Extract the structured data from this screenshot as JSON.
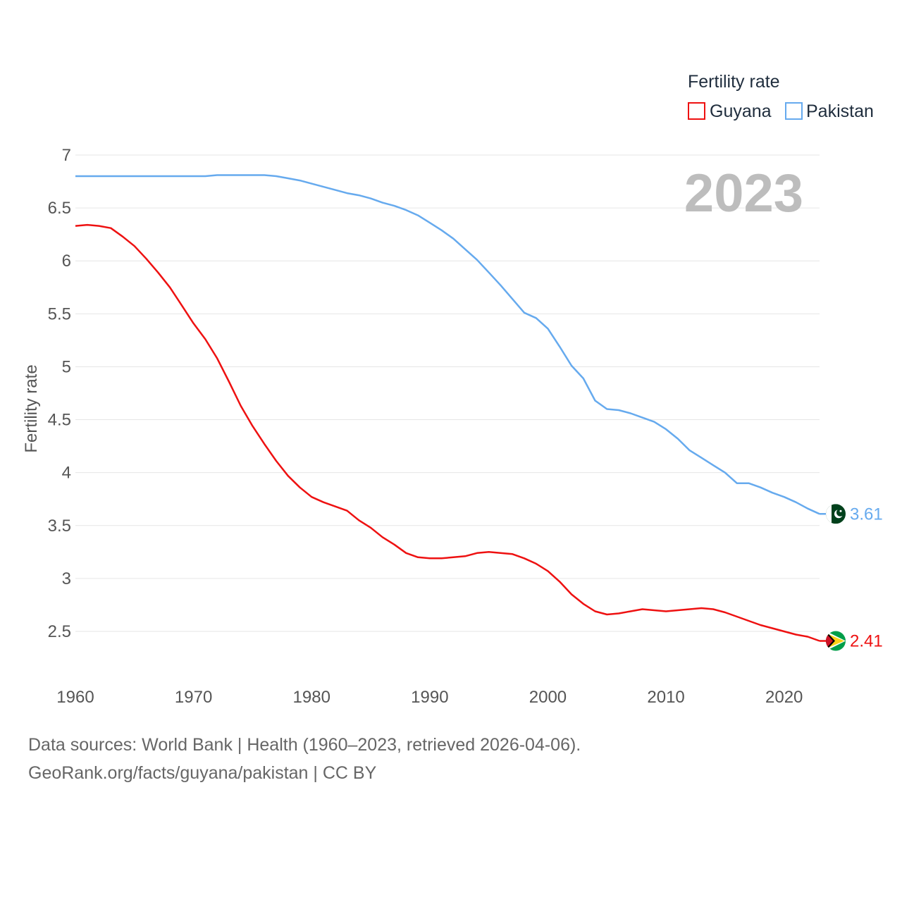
{
  "chart_data": {
    "type": "line",
    "title": "",
    "current_year": "2023",
    "ylabel": "Fertility rate",
    "xlabel": "",
    "xlim": [
      1960,
      2023
    ],
    "ylim": [
      2.1,
      7
    ],
    "y_ticks": [
      2.5,
      3,
      3.5,
      4,
      4.5,
      5,
      5.5,
      6,
      6.5,
      7
    ],
    "y_tick_labels": [
      "2.5",
      "3",
      "3.5",
      "4",
      "4.5",
      "5",
      "5.5",
      "6",
      "6.5",
      "7"
    ],
    "x_ticks": [
      1960,
      1970,
      1980,
      1990,
      2000,
      2010,
      2020
    ],
    "x_tick_labels": [
      "1960",
      "1970",
      "1980",
      "1990",
      "2000",
      "2010",
      "2020"
    ],
    "grid": true,
    "legend": {
      "title": "Fertility rate",
      "position": "top-right"
    },
    "series": [
      {
        "name": "Guyana",
        "color": "#ee1111",
        "end_label": "2.41",
        "flag_icon": "guyana-flag-icon",
        "x": [
          1960,
          1961,
          1962,
          1963,
          1964,
          1965,
          1966,
          1967,
          1968,
          1969,
          1970,
          1971,
          1972,
          1973,
          1974,
          1975,
          1976,
          1977,
          1978,
          1979,
          1980,
          1981,
          1982,
          1983,
          1984,
          1985,
          1986,
          1987,
          1988,
          1989,
          1990,
          1991,
          1992,
          1993,
          1994,
          1995,
          1996,
          1997,
          1998,
          1999,
          2000,
          2001,
          2002,
          2003,
          2004,
          2005,
          2006,
          2007,
          2008,
          2009,
          2010,
          2011,
          2012,
          2013,
          2014,
          2015,
          2016,
          2017,
          2018,
          2019,
          2020,
          2021,
          2022,
          2023
        ],
        "values": [
          6.33,
          6.34,
          6.33,
          6.31,
          6.23,
          6.14,
          6.02,
          5.89,
          5.75,
          5.58,
          5.41,
          5.26,
          5.08,
          4.86,
          4.63,
          4.44,
          4.27,
          4.11,
          3.97,
          3.86,
          3.77,
          3.72,
          3.68,
          3.64,
          3.55,
          3.48,
          3.39,
          3.32,
          3.24,
          3.2,
          3.19,
          3.19,
          3.2,
          3.21,
          3.24,
          3.25,
          3.24,
          3.23,
          3.19,
          3.14,
          3.07,
          2.97,
          2.85,
          2.76,
          2.69,
          2.66,
          2.67,
          2.69,
          2.71,
          2.7,
          2.69,
          2.7,
          2.71,
          2.72,
          2.71,
          2.68,
          2.64,
          2.6,
          2.56,
          2.53,
          2.5,
          2.47,
          2.45,
          2.41
        ]
      },
      {
        "name": "Pakistan",
        "color": "#66aaee",
        "end_label": "3.61",
        "flag_icon": "pakistan-flag-icon",
        "x": [
          1960,
          1961,
          1962,
          1963,
          1964,
          1965,
          1966,
          1967,
          1968,
          1969,
          1970,
          1971,
          1972,
          1973,
          1974,
          1975,
          1976,
          1977,
          1978,
          1979,
          1980,
          1981,
          1982,
          1983,
          1984,
          1985,
          1986,
          1987,
          1988,
          1989,
          1990,
          1991,
          1992,
          1993,
          1994,
          1995,
          1996,
          1997,
          1998,
          1999,
          2000,
          2001,
          2002,
          2003,
          2004,
          2005,
          2006,
          2007,
          2008,
          2009,
          2010,
          2011,
          2012,
          2013,
          2014,
          2015,
          2016,
          2017,
          2018,
          2019,
          2020,
          2021,
          2022,
          2023
        ],
        "values": [
          6.8,
          6.8,
          6.8,
          6.8,
          6.8,
          6.8,
          6.8,
          6.8,
          6.8,
          6.8,
          6.8,
          6.8,
          6.81,
          6.81,
          6.81,
          6.81,
          6.81,
          6.8,
          6.78,
          6.76,
          6.73,
          6.7,
          6.67,
          6.64,
          6.62,
          6.59,
          6.55,
          6.52,
          6.48,
          6.43,
          6.36,
          6.29,
          6.21,
          6.11,
          6.01,
          5.89,
          5.77,
          5.64,
          5.51,
          5.46,
          5.36,
          5.19,
          5.01,
          4.89,
          4.68,
          4.6,
          4.59,
          4.56,
          4.52,
          4.48,
          4.41,
          4.32,
          4.21,
          4.14,
          4.07,
          4.0,
          3.9,
          3.9,
          3.86,
          3.81,
          3.77,
          3.72,
          3.66,
          3.61
        ]
      }
    ]
  },
  "footer": {
    "sources": "Data sources: World Bank | Health (1960–2023, retrieved 2026-04-06).",
    "credit": "GeoRank.org/facts/guyana/pakistan | CC BY"
  }
}
